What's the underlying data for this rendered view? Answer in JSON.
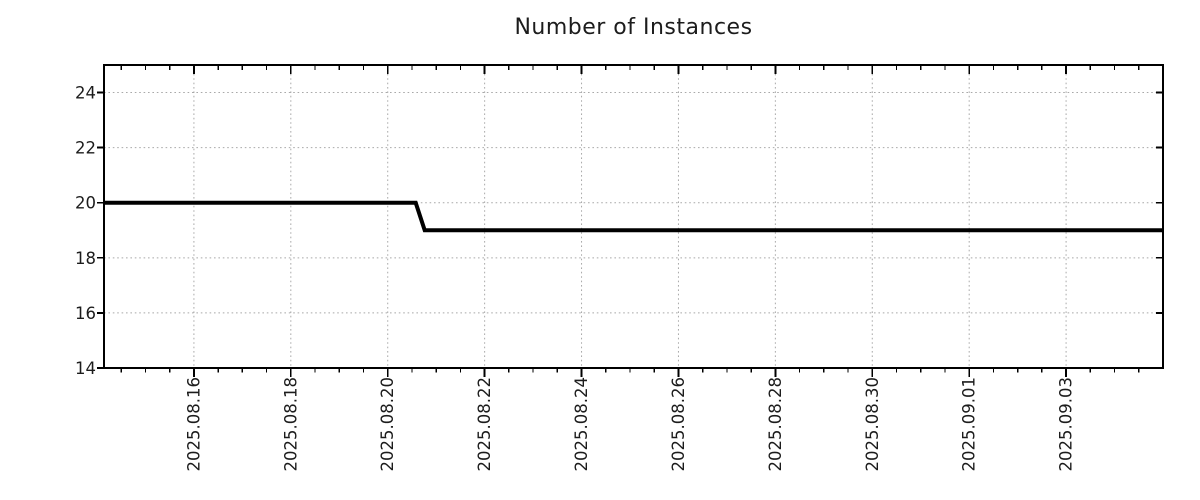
{
  "header": {
    "title": "Number of Instances"
  },
  "colors": {
    "line": "#000000",
    "grid": "#a9a9a9",
    "border": "#000000",
    "text": "#1c1c1c"
  },
  "chart_data": {
    "type": "line",
    "title": "Number of Instances",
    "xlabel": "",
    "ylabel": "",
    "grid": "dotted",
    "legend": false,
    "x_tick_labels": [
      "2025.08.16",
      "2025.08.18",
      "2025.08.20",
      "2025.08.22",
      "2025.08.24",
      "2025.08.26",
      "2025.08.28",
      "2025.08.30",
      "2025.09.01",
      "2025.09.03"
    ],
    "y_ticks": [
      14,
      16,
      18,
      20,
      22,
      24
    ],
    "y_tick_labels": [
      "14",
      "16",
      "18",
      "20",
      "22",
      "24"
    ],
    "ylim": [
      14,
      25
    ],
    "x_range_estimate": [
      "2025.08.14",
      "2025.09.04"
    ],
    "x_axis_geometry": {
      "first_major_frac": 0.0849,
      "major_step_frac": 0.09151,
      "minor_per_major": 4
    },
    "series": [
      {
        "name": "instances",
        "color": "#000000",
        "points": [
          {
            "x": "2025.08.14 (left edge)",
            "y": 20
          },
          {
            "x": "2025.08.20 13:00",
            "y": 20
          },
          {
            "x": "2025.08.20 18:00",
            "y": 19
          },
          {
            "x": "2025.09.04 (right edge)",
            "y": 19
          }
        ],
        "points_frac": [
          [
            0,
            20
          ],
          [
            0.2943,
            20
          ],
          [
            0.3028,
            19
          ],
          [
            1,
            19
          ]
        ]
      }
    ]
  }
}
